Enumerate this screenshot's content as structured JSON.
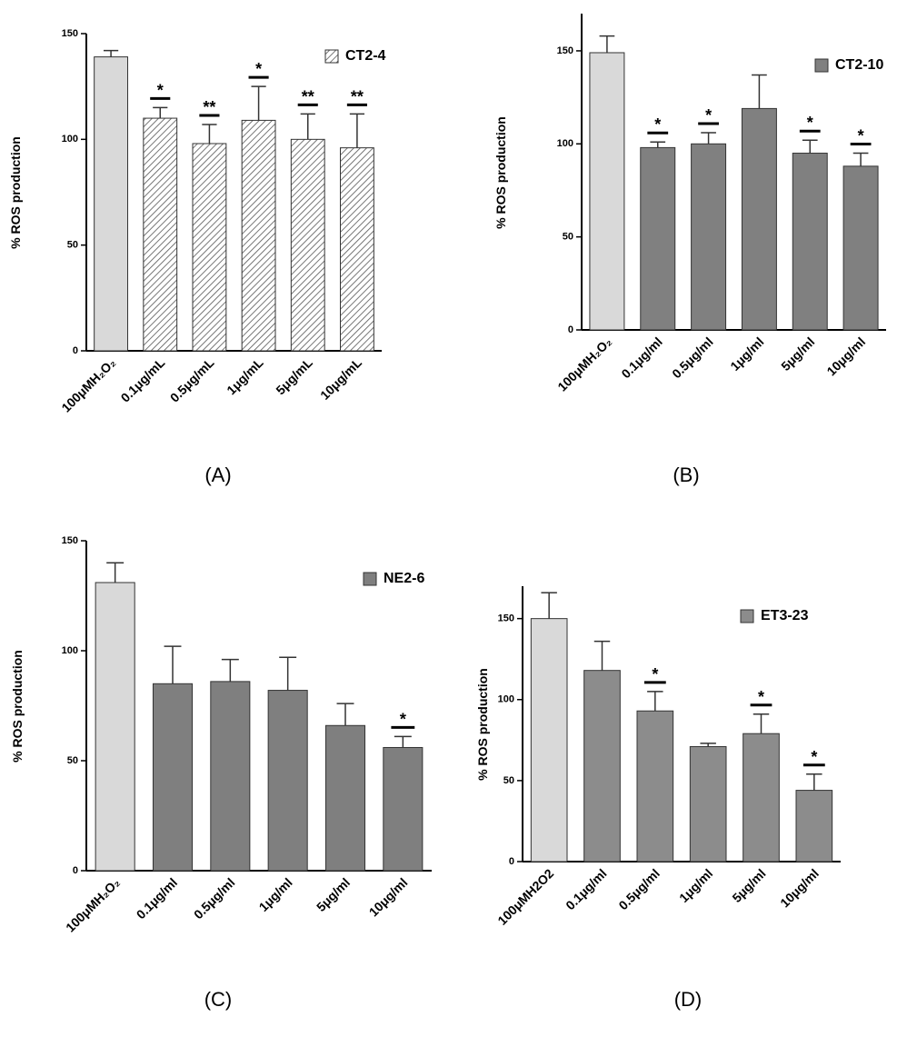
{
  "chart_data": [
    {
      "type": "bar",
      "panel_label": "(A)",
      "ylabel": "% ROS production",
      "categories": [
        "100μMH₂O₂",
        "0.1μg/mL",
        "0.5μg/mL",
        "1μg/mL",
        "5μg/mL",
        "10μg/mL"
      ],
      "series": [
        {
          "name": "CT2-4",
          "color": "#8a8a8a",
          "hatch": true,
          "control_color": "#d9d9d9",
          "values": [
            139,
            110,
            98,
            109,
            100,
            96
          ],
          "errors": [
            3,
            5,
            9,
            16,
            12,
            16
          ]
        }
      ],
      "annotations": [
        null,
        "*",
        "**",
        "*",
        "**",
        "**"
      ],
      "ylim": [
        0,
        150
      ],
      "yticks": [
        0,
        50,
        100,
        150
      ]
    },
    {
      "type": "bar",
      "panel_label": "(B)",
      "ylabel": "% ROS production",
      "categories": [
        "100μMH₂O₂",
        "0.1μg/ml",
        "0.5μg/ml",
        "1μg/ml",
        "5μg/ml",
        "10μg/ml"
      ],
      "series": [
        {
          "name": "CT2-10",
          "color": "#808080",
          "hatch": false,
          "control_color": "#d9d9d9",
          "values": [
            149,
            98,
            100,
            119,
            95,
            88
          ],
          "errors": [
            9,
            3,
            6,
            18,
            7,
            7
          ]
        }
      ],
      "annotations": [
        null,
        "*",
        "*",
        null,
        "*",
        "*"
      ],
      "ylim": [
        0,
        170
      ],
      "yticks": [
        0,
        50,
        100,
        150
      ]
    },
    {
      "type": "bar",
      "panel_label": "(C)",
      "ylabel": "% ROS production",
      "categories": [
        "100μMH₂O₂",
        "0.1μg/ml",
        "0.5μg/ml",
        "1μg/ml",
        "5μg/ml",
        "10μg/ml"
      ],
      "series": [
        {
          "name": "NE2-6",
          "color": "#7f7f7f",
          "hatch": false,
          "control_color": "#d9d9d9",
          "values": [
            131,
            85,
            86,
            82,
            66,
            56
          ],
          "errors": [
            9,
            17,
            10,
            15,
            10,
            5
          ]
        }
      ],
      "annotations": [
        null,
        null,
        null,
        null,
        null,
        "*"
      ],
      "ylim": [
        0,
        150
      ],
      "yticks": [
        0,
        50,
        100,
        150
      ]
    },
    {
      "type": "bar",
      "panel_label": "(D)",
      "ylabel": "% ROS production",
      "categories": [
        "100μMH2O2",
        "0.1μg/ml",
        "0.5μg/ml",
        "1μg/ml",
        "5μg/ml",
        "10μg/ml"
      ],
      "series": [
        {
          "name": "ET3-23",
          "color": "#8c8c8c",
          "hatch": false,
          "control_color": "#d9d9d9",
          "values": [
            150,
            118,
            93,
            71,
            79,
            44
          ],
          "errors": [
            16,
            18,
            12,
            2,
            12,
            10
          ]
        }
      ],
      "annotations": [
        null,
        null,
        "*",
        null,
        "*",
        "*"
      ],
      "ylim": [
        0,
        170
      ],
      "yticks": [
        0,
        50,
        100,
        150
      ]
    }
  ]
}
